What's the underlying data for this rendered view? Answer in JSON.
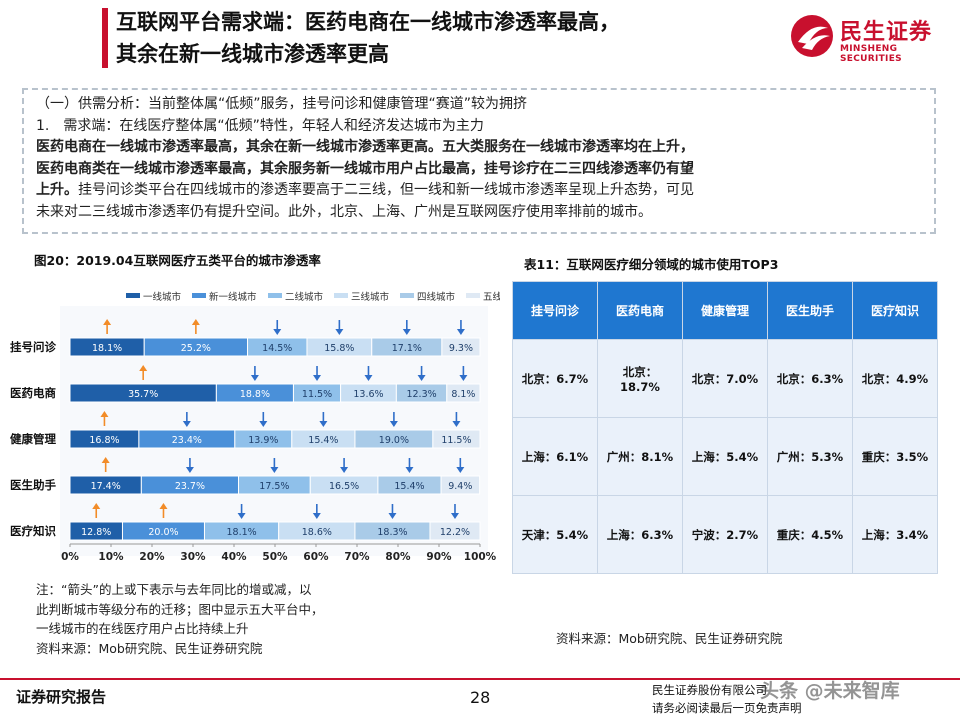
{
  "header": {
    "title_line1": "互联网平台需求端：医药电商在一线城市渗透率最高，",
    "title_line2": "其余在新一线城市渗透率更高",
    "logo_cn": "民生证券",
    "logo_en": "MINSHENG SECURITIES",
    "brand_color": "#c8102e"
  },
  "summary": {
    "line1": "（一）供需分析：当前整体属“低频”服务，挂号问诊和健康管理“赛道”较为拥挤",
    "line2": "1.　需求端：在线医疗整体属“低频”特性，年轻人和经济发达城市为主力",
    "line3": "医药电商在一线城市渗透率最高，其余在新一线城市渗透率更高。五大类服务在一线城市渗透率均在上升，",
    "line4": "医药电商类在一线城市渗透率最高，其余服务新一线城市用户占比最高，挂号诊疗在二三四线渗透率仍有望",
    "line5_bold": "上升。",
    "line5_rest": "挂号问诊类平台在四线城市的渗透率要高于二三线，但一线和新一线城市渗透率呈现上升态势，可见",
    "line6": "未来对二三线城市渗透率仍有提升空间。此外，北京、上海、广州是互联网医疗使用率排前的城市。"
  },
  "figure_title": "图20：2019.04互联网医疗五类平台的城市渗透率",
  "table_title": "表11：互联网医疗细分领域的城市使用TOP3",
  "chart_data": {
    "type": "bar",
    "orientation": "horizontal-stacked-100",
    "categories": [
      "挂号问诊",
      "医药电商",
      "健康管理",
      "医生助手",
      "医疗知识"
    ],
    "series": [
      {
        "name": "一线城市",
        "color": "#1f5fa8",
        "values": [
          18.1,
          35.7,
          16.8,
          17.4,
          12.8
        ],
        "labels": [
          "18.1%",
          "35.7%",
          "16.8%",
          "17.4%",
          "12.8%"
        ],
        "arrows": [
          "up",
          "up",
          "up",
          "up",
          "up"
        ]
      },
      {
        "name": "新一线城市",
        "color": "#4a90d9",
        "values": [
          25.2,
          18.8,
          23.4,
          23.7,
          20.0
        ],
        "labels": [
          "25.2%",
          "18.8%",
          "23.4%",
          "23.7%",
          "20.0%"
        ],
        "arrows": [
          "up",
          "down",
          "down",
          "down",
          "up"
        ]
      },
      {
        "name": "二线城市",
        "color": "#8fc0ea",
        "values": [
          14.5,
          11.5,
          13.9,
          17.5,
          18.1
        ],
        "labels": [
          "14.5%",
          "11.5%",
          "13.9%",
          "17.5%",
          "18.1%"
        ],
        "arrows": [
          "down",
          "down",
          "down",
          "down",
          "down"
        ]
      },
      {
        "name": "三线城市",
        "color": "#c9dff3",
        "values": [
          15.8,
          13.6,
          15.4,
          16.5,
          18.6
        ],
        "labels": [
          "15.8%",
          "13.6%",
          "15.4%",
          "16.5%",
          "18.6%"
        ],
        "arrows": [
          "down",
          "down",
          "down",
          "down",
          "down"
        ]
      },
      {
        "name": "四线城市",
        "color": "#a9cbe8",
        "values": [
          17.1,
          12.3,
          19.0,
          15.4,
          18.3
        ],
        "labels": [
          "17.1%",
          "12.3%",
          "19.0%",
          "15.4%",
          "18.3%"
        ],
        "arrows": [
          "down",
          "down",
          "down",
          "down",
          "down"
        ]
      },
      {
        "name": "五线城市",
        "color": "#dfe9f4",
        "values": [
          9.3,
          8.1,
          11.5,
          9.4,
          12.2
        ],
        "labels": [
          "9.3%",
          "8.1%",
          "11.5%",
          "9.4%",
          "12.2%"
        ],
        "arrows": [
          "down",
          "down",
          "down",
          "down",
          "down"
        ]
      }
    ],
    "xlim": [
      0,
      100
    ],
    "xticks": [
      "0%",
      "10%",
      "20%",
      "30%",
      "40%",
      "50%",
      "60%",
      "70%",
      "80%",
      "90%",
      "100%"
    ],
    "legend_position": "top-right",
    "arrow_up_color": "#f28c28",
    "arrow_down_color": "#2f6ec9"
  },
  "note": {
    "line1": "注：“箭头”的上或下表示与去年同比的增或减，以",
    "line2": "此判断城市等级分布的迁移；图中显示五大平台中，",
    "line3": "一线城市的在线医疗用户占比持续上升",
    "line4": "资料来源：Mob研究院、民生证券研究院"
  },
  "table": {
    "headers": [
      "挂号问诊",
      "医药电商",
      "健康管理",
      "医生助手",
      "医疗知识"
    ],
    "rows": [
      [
        "北京：6.7%",
        "北京：\n18.7%",
        "北京：7.0%",
        "北京：6.3%",
        "北京：4.9%"
      ],
      [
        "上海：6.1%",
        "广州：8.1%",
        "上海：5.4%",
        "广州：5.3%",
        "重庆：3.5%"
      ],
      [
        "天津：5.4%",
        "上海：6.3%",
        "宁波：2.7%",
        "重庆：4.5%",
        "上海：3.4%"
      ]
    ],
    "header_color": "#1f77d0",
    "cell_color": "#eaf1fa"
  },
  "table_source": "资料来源：Mob研究院、民生证券研究院",
  "footer": {
    "left": "证券研究报告",
    "page": "28",
    "right1": "民生证券股份有限公司",
    "right2": "请务必阅读最后一页免责声明",
    "watermark": "头条 @未来智库"
  }
}
